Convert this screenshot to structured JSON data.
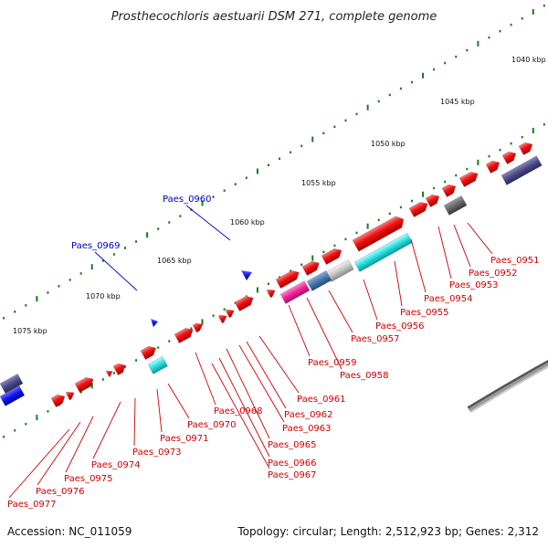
{
  "title": "Prosthecochloris aestuarii DSM 271, complete genome",
  "footer": {
    "accession": "Accession: NC_011059",
    "summary": "Topology: circular; Length: 2,512,923 bp; Genes: 2,312"
  },
  "kbp_labels": [
    "1040 kbp",
    "1045 kbp",
    "1050 kbp",
    "1055 kbp",
    "1060 kbp",
    "1065 kbp",
    "1070 kbp",
    "1075 kbp"
  ],
  "gene_labels": [
    {
      "text": "Paes_0951",
      "color": "red"
    },
    {
      "text": "Paes_0952",
      "color": "red"
    },
    {
      "text": "Paes_0953",
      "color": "red"
    },
    {
      "text": "Paes_0954",
      "color": "red"
    },
    {
      "text": "Paes_0955",
      "color": "red"
    },
    {
      "text": "Paes_0956",
      "color": "red"
    },
    {
      "text": "Paes_0957",
      "color": "red"
    },
    {
      "text": "Paes_0958",
      "color": "red"
    },
    {
      "text": "Paes_0959",
      "color": "red"
    },
    {
      "text": "Paes_0961",
      "color": "red"
    },
    {
      "text": "Paes_0962",
      "color": "red"
    },
    {
      "text": "Paes_0963",
      "color": "red"
    },
    {
      "text": "Paes_0965",
      "color": "red"
    },
    {
      "text": "Paes_0966",
      "color": "red"
    },
    {
      "text": "Paes_0967",
      "color": "red"
    },
    {
      "text": "Paes_0968",
      "color": "red"
    },
    {
      "text": "Paes_0970",
      "color": "red"
    },
    {
      "text": "Paes_0971",
      "color": "red"
    },
    {
      "text": "Paes_0973",
      "color": "red"
    },
    {
      "text": "Paes_0974",
      "color": "red"
    },
    {
      "text": "Paes_0975",
      "color": "red"
    },
    {
      "text": "Paes_0976",
      "color": "red"
    },
    {
      "text": "Paes_0977",
      "color": "red"
    },
    {
      "text": "Paes_0960",
      "color": "blue"
    },
    {
      "text": "Paes_0969",
      "color": "blue"
    }
  ],
  "colors": {
    "backbone": "#9a9a9a",
    "tick": "#1a7a1a",
    "forward_gene": "#ee1111",
    "reverse_gene": "#1111ee",
    "label_red": "#cc0000",
    "label_blue": "#0000bb",
    "cyan": "#22dddd",
    "magenta": "#ee2299",
    "steelblue": "#4477aa",
    "silver": "#c4c4c4",
    "gray": "#666666",
    "indigo": "#4a4a8a"
  }
}
